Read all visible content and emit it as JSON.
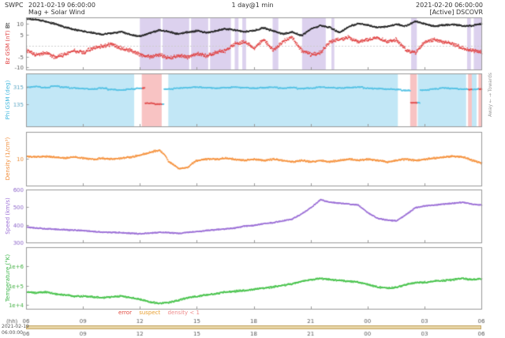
{
  "header": {
    "app": "SWPC",
    "start_datetime": "2021-02-19 06:00:00",
    "plot_title": "Mag + Solar Wind",
    "range_resolution": "1 day@1 min",
    "end_datetime": "2021-02-20 06:00:00",
    "source_status": "[Active] DSCOVR"
  },
  "labels": {
    "away_towards": "Away ← → Towards"
  },
  "footer": {
    "start_date": "2021-02-19",
    "start_time": "06:00:00",
    "legend": {
      "error": "error",
      "suspect": "suspect",
      "density_lt1": "density < 1"
    }
  },
  "colors": {
    "bt": "#222222",
    "bz": "#e04343",
    "phi": "#56c2e4",
    "phi_flag": "#e05252",
    "density": "#f5923e",
    "speed": "#9b6fd6",
    "temp": "#46c24a",
    "band_south": "rgba(186,164,222,0.5)",
    "band_towards": "rgba(173,223,243,0.75)",
    "band_away": "rgba(246,180,180,0.8)",
    "axis": "#999999",
    "tick_text": "#555555"
  },
  "chart_data": {
    "type": "line",
    "title": "Mag + Solar Wind",
    "x_start": "2021-02-19 06:00:00",
    "x_end": "2021-02-20 06:00:00",
    "sample_step_hours": 0.5,
    "x_axis": {
      "ticks_hours": [
        0,
        3,
        6,
        9,
        12,
        15,
        18,
        21,
        24
      ],
      "tick_labels": [
        "06",
        "09",
        "12",
        "15",
        "18",
        "21",
        "00",
        "03",
        "06"
      ],
      "unit_label": "(hh)"
    },
    "panels": [
      {
        "id": "mag",
        "ylabel": [
          {
            "text": "Bz GSM (nT)"
          },
          {
            "text": "  Bt"
          }
        ],
        "yscale": "linear",
        "ylim": [
          -11,
          13
        ],
        "tick_color": "#555555",
        "yticks": [
          {
            "v": 10,
            "label": "10"
          },
          {
            "v": 5,
            "label": "5"
          },
          {
            "v": -5,
            "label": "-5"
          },
          {
            "v": -10,
            "label": "-10"
          }
        ],
        "zero_line": true,
        "bands": [
          {
            "from": 6.0,
            "to": 7.1,
            "color": "band_south"
          },
          {
            "from": 7.2,
            "to": 8.6,
            "color": "band_south"
          },
          {
            "from": 8.7,
            "to": 9.6,
            "color": "band_south"
          },
          {
            "from": 9.7,
            "to": 10.8,
            "color": "band_south"
          },
          {
            "from": 11.0,
            "to": 11.2,
            "color": "band_south"
          },
          {
            "from": 11.4,
            "to": 11.6,
            "color": "band_south"
          },
          {
            "from": 13.0,
            "to": 13.3,
            "color": "band_south"
          },
          {
            "from": 14.55,
            "to": 15.8,
            "color": "band_south"
          },
          {
            "from": 16.1,
            "to": 16.25,
            "color": "band_south"
          },
          {
            "from": 20.3,
            "to": 20.6,
            "color": "band_south"
          },
          {
            "from": 23.25,
            "to": 23.45,
            "color": "band_south"
          },
          {
            "from": 23.6,
            "to": 24,
            "color": "band_south"
          }
        ],
        "series": [
          {
            "name": "Bt",
            "color": "bt",
            "noise": 0.45,
            "values": [
              12.6,
              12.2,
              11.4,
              10.2,
              8.8,
              7.6,
              6.8,
              6.2,
              5.4,
              6.0,
              6.6,
              5.2,
              4.6,
              6.0,
              7.4,
              6.6,
              5.6,
              6.4,
              7.0,
              6.2,
              7.0,
              8.0,
              7.4,
              6.6,
              7.2,
              8.4,
              7.0,
              5.6,
              6.4,
              4.8,
              8.0,
              9.4,
              8.6,
              6.2,
              9.0,
              10.4,
              9.6,
              8.6,
              9.0,
              10.0,
              9.2,
              11.4,
              10.2,
              9.2,
              9.6,
              10.0,
              9.2,
              9.4,
              10.4
            ]
          },
          {
            "name": "Bz",
            "color": "bz",
            "noise": 1.0,
            "values": [
              -2,
              -4,
              -3,
              -5,
              -4,
              -2,
              -3,
              -1,
              0,
              1,
              -1,
              -2,
              -4,
              -5,
              -4,
              -5.5,
              -4.5,
              -5,
              -3.5,
              -4.5,
              -3,
              -2,
              1,
              2,
              -1,
              3,
              -2,
              2,
              4,
              -2,
              -4,
              -3,
              2,
              3,
              4,
              2,
              3,
              4,
              2,
              3,
              -2,
              -3,
              2,
              3,
              2,
              1,
              -1,
              -2,
              -3
            ]
          }
        ]
      },
      {
        "id": "phi",
        "ylabel": [
          {
            "text": "Phi GSM (deg)"
          }
        ],
        "yscale": "linear",
        "ylim": [
          -100,
          460
        ],
        "tick_color": "#5ba6c4",
        "yticks": [
          {
            "v": 315,
            "label": "315"
          },
          {
            "v": 135,
            "label": "135"
          }
        ],
        "bands": [
          {
            "from": 0,
            "to": 5.7,
            "color": "band_towards"
          },
          {
            "from": 7.5,
            "to": 19.6,
            "color": "band_towards"
          },
          {
            "from": 20.65,
            "to": 23.2,
            "color": "band_towards"
          },
          {
            "from": 23.5,
            "to": 23.75,
            "color": "band_towards"
          },
          {
            "from": 6.1,
            "to": 7.15,
            "color": "band_away"
          },
          {
            "from": 20.25,
            "to": 20.6,
            "color": "band_away"
          },
          {
            "from": 23.3,
            "to": 23.5,
            "color": "band_away"
          },
          {
            "from": 23.85,
            "to": 24,
            "color": "band_away"
          }
        ],
        "series": [
          {
            "name": "Phi",
            "color": "phi",
            "noise": 7,
            "interp": "nearest",
            "flag_band_color": "band_away",
            "flag_color": "phi_flag",
            "values": [
              320,
              325,
              315,
              330,
              320,
              310,
              305,
              300,
              310,
              295,
              290,
              300,
              310,
              150,
              140,
              300,
              310,
              315,
              320,
              315,
              310,
              315,
              320,
              315,
              310,
              315,
              320,
              310,
              315,
              305,
              310,
              320,
              315,
              310,
              315,
              320,
              310,
              305,
              300,
              295,
              285,
              155,
              290,
              300,
              310,
              305,
              300,
              295,
              300
            ]
          }
        ]
      },
      {
        "id": "density",
        "ylabel": [
          {
            "text": "Density (1/cm³)"
          }
        ],
        "yscale": "log",
        "ylim": [
          1,
          100
        ],
        "tick_color": "#e8882f",
        "yticks": [
          {
            "v": 10,
            "label": "10"
          }
        ],
        "series": [
          {
            "name": "Density",
            "color": "density",
            "noise": 0.04,
            "values": [
              13,
              12,
              13,
              12,
              11,
              12,
              11,
              10,
              11,
              10,
              11,
              12,
              14,
              18,
              22,
              8,
              4.5,
              5,
              9,
              10,
              10,
              11,
              10,
              9,
              10,
              9,
              10,
              9,
              8,
              9,
              8,
              9,
              8,
              9,
              10,
              9,
              10,
              9,
              8,
              9,
              10,
              9,
              10,
              11,
              12,
              13,
              12,
              9,
              7
            ]
          }
        ]
      },
      {
        "id": "speed",
        "ylabel": [
          {
            "text": "Speed (km/s)"
          }
        ],
        "yscale": "linear",
        "ylim": [
          300,
          600
        ],
        "tick_color": "#8b63c9",
        "yticks": [
          {
            "v": 600,
            "label": "600"
          },
          {
            "v": 500,
            "label": "500"
          },
          {
            "v": 400,
            "label": "400"
          },
          {
            "v": 300,
            "label": "300"
          }
        ],
        "series": [
          {
            "name": "Speed",
            "color": "speed",
            "noise": 4,
            "values": [
              390,
              385,
              380,
              378,
              375,
              372,
              370,
              365,
              362,
              360,
              358,
              355,
              352,
              355,
              360,
              358,
              355,
              360,
              365,
              370,
              375,
              380,
              385,
              395,
              400,
              410,
              415,
              425,
              435,
              465,
              500,
              545,
              530,
              525,
              520,
              515,
              470,
              440,
              430,
              425,
              460,
              500,
              510,
              515,
              520,
              525,
              530,
              520,
              515
            ]
          }
        ]
      },
      {
        "id": "temperature",
        "ylabel": [
          {
            "text": "Temperature (°K)"
          }
        ],
        "yscale": "log",
        "ylim": [
          6300,
          10000000
        ],
        "tick_color": "#3fae3f",
        "yticks": [
          {
            "v": 1000000,
            "label": "1e+6"
          },
          {
            "v": 100000,
            "label": "1e+5"
          },
          {
            "v": 10000,
            "label": "1e+4"
          }
        ],
        "series": [
          {
            "name": "Temperature",
            "color": "temp",
            "noise": 0.055,
            "values": [
              50000,
              45000,
              50000,
              40000,
              35000,
              30000,
              30000,
              28000,
              25000,
              28000,
              30000,
              25000,
              20000,
              15000,
              13000,
              14000,
              18000,
              25000,
              30000,
              35000,
              40000,
              50000,
              55000,
              60000,
              70000,
              80000,
              90000,
              110000,
              130000,
              180000,
              220000,
              250000,
              220000,
              200000,
              180000,
              160000,
              120000,
              90000,
              80000,
              85000,
              120000,
              150000,
              160000,
              180000,
              200000,
              220000,
              250000,
              220000,
              240000
            ]
          }
        ]
      }
    ]
  }
}
